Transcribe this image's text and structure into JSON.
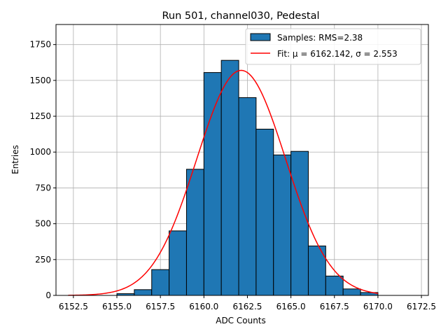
{
  "chart_data": {
    "type": "bar",
    "title": "Run 501, channel030, Pedestal",
    "xlabel": "ADC Counts",
    "ylabel": "Entries",
    "xlim": [
      6151.5,
      6172.9
    ],
    "ylim": [
      0,
      1890
    ],
    "grid": true,
    "legend_position": "top-right",
    "x_ticks": [
      6152.5,
      6155.0,
      6157.5,
      6160.0,
      6162.5,
      6165.0,
      6167.5,
      6170.0,
      6172.5
    ],
    "x_tick_labels": [
      "6152.5",
      "6155.0",
      "6157.5",
      "6160.0",
      "6162.5",
      "6165.0",
      "6167.5",
      "6170.0",
      "6172.5"
    ],
    "y_ticks": [
      0,
      250,
      500,
      750,
      1000,
      1250,
      1500,
      1750
    ],
    "y_tick_labels": [
      "0",
      "250",
      "500",
      "750",
      "1000",
      "1250",
      "1500",
      "1750"
    ],
    "bin_edges": [
      6155,
      6156,
      6157,
      6158,
      6159,
      6160,
      6161,
      6162,
      6163,
      6164,
      6165,
      6166,
      6167,
      6168,
      6169,
      6170
    ],
    "values": [
      12,
      40,
      180,
      450,
      880,
      1555,
      1640,
      1380,
      1160,
      980,
      1005,
      345,
      135,
      45,
      20
    ],
    "bar_color": "#1f77b4",
    "bar_edge_color": "#000000",
    "fit": {
      "mu": 6162.142,
      "sigma": 2.553,
      "amplitude": 1570,
      "x_range": [
        6152.2,
        6170.0
      ],
      "color": "#ff0000"
    },
    "legend": [
      {
        "label": "Samples: RMS=2.38",
        "kind": "patch"
      },
      {
        "label": "Fit: μ = 6162.142, σ = 2.553",
        "kind": "line"
      }
    ]
  }
}
